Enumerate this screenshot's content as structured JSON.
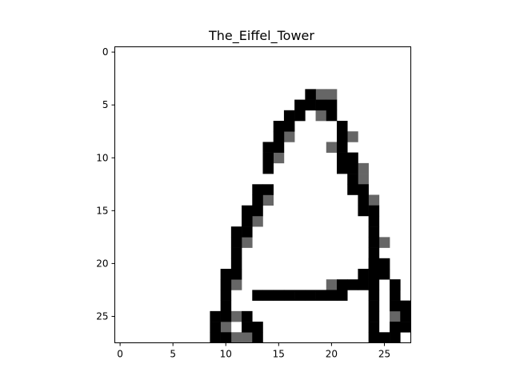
{
  "chart_data": {
    "type": "heatmap",
    "title": "The_Eiffel_Tower",
    "colormap": "gray_r",
    "grid": false,
    "xlim": [
      -0.5,
      27.5
    ],
    "ylim": [
      27.5,
      -0.5
    ],
    "x_ticks": [
      0,
      5,
      10,
      15,
      20,
      25
    ],
    "y_ticks": [
      0,
      5,
      10,
      15,
      20,
      25
    ],
    "x_tick_labels": [
      "0",
      "5",
      "10",
      "15",
      "20",
      "25"
    ],
    "y_tick_labels": [
      "0",
      "5",
      "10",
      "15",
      "20",
      "25"
    ],
    "size": [
      28,
      28
    ],
    "levels": {
      "dark": 1.0,
      "mid": 0.6
    },
    "pixels": {
      "dark": [
        [
          4,
          18
        ],
        [
          5,
          17
        ],
        [
          5,
          18
        ],
        [
          5,
          19
        ],
        [
          5,
          20
        ],
        [
          6,
          16
        ],
        [
          6,
          17
        ],
        [
          6,
          20
        ],
        [
          7,
          15
        ],
        [
          7,
          16
        ],
        [
          7,
          21
        ],
        [
          8,
          15
        ],
        [
          8,
          21
        ],
        [
          9,
          14
        ],
        [
          9,
          15
        ],
        [
          9,
          21
        ],
        [
          10,
          14
        ],
        [
          10,
          21
        ],
        [
          10,
          22
        ],
        [
          11,
          14
        ],
        [
          11,
          21
        ],
        [
          11,
          22
        ],
        [
          12,
          22
        ],
        [
          13,
          13
        ],
        [
          13,
          14
        ],
        [
          13,
          22
        ],
        [
          13,
          23
        ],
        [
          14,
          13
        ],
        [
          14,
          23
        ],
        [
          15,
          12
        ],
        [
          15,
          13
        ],
        [
          15,
          23
        ],
        [
          15,
          24
        ],
        [
          16,
          12
        ],
        [
          16,
          24
        ],
        [
          17,
          11
        ],
        [
          17,
          12
        ],
        [
          17,
          24
        ],
        [
          18,
          11
        ],
        [
          18,
          24
        ],
        [
          19,
          11
        ],
        [
          19,
          24
        ],
        [
          20,
          11
        ],
        [
          20,
          24
        ],
        [
          20,
          25
        ],
        [
          21,
          10
        ],
        [
          21,
          11
        ],
        [
          21,
          23
        ],
        [
          21,
          24
        ],
        [
          21,
          25
        ],
        [
          22,
          10
        ],
        [
          22,
          21
        ],
        [
          22,
          22
        ],
        [
          22,
          23
        ],
        [
          22,
          24
        ],
        [
          22,
          26
        ],
        [
          23,
          10
        ],
        [
          23,
          13
        ],
        [
          23,
          14
        ],
        [
          23,
          15
        ],
        [
          23,
          16
        ],
        [
          23,
          17
        ],
        [
          23,
          18
        ],
        [
          23,
          19
        ],
        [
          23,
          20
        ],
        [
          23,
          21
        ],
        [
          23,
          24
        ],
        [
          23,
          26
        ],
        [
          24,
          10
        ],
        [
          24,
          24
        ],
        [
          24,
          26
        ],
        [
          24,
          27
        ],
        [
          25,
          9
        ],
        [
          25,
          10
        ],
        [
          25,
          12
        ],
        [
          25,
          24
        ],
        [
          25,
          27
        ],
        [
          26,
          9
        ],
        [
          26,
          12
        ],
        [
          26,
          13
        ],
        [
          26,
          24
        ],
        [
          26,
          26
        ],
        [
          26,
          27
        ],
        [
          27,
          9
        ],
        [
          27,
          10
        ],
        [
          27,
          13
        ],
        [
          27,
          24
        ],
        [
          27,
          25
        ],
        [
          27,
          26
        ]
      ],
      "mid": [
        [
          4,
          19
        ],
        [
          4,
          20
        ],
        [
          6,
          19
        ],
        [
          7,
          21
        ],
        [
          8,
          16
        ],
        [
          8,
          22
        ],
        [
          9,
          20
        ],
        [
          10,
          15
        ],
        [
          10,
          22
        ],
        [
          11,
          23
        ],
        [
          12,
          23
        ],
        [
          14,
          14
        ],
        [
          14,
          24
        ],
        [
          16,
          13
        ],
        [
          18,
          12
        ],
        [
          18,
          25
        ],
        [
          20,
          24
        ],
        [
          22,
          11
        ],
        [
          22,
          20
        ],
        [
          22,
          26
        ],
        [
          25,
          11
        ],
        [
          25,
          26
        ],
        [
          26,
          10
        ],
        [
          27,
          11
        ],
        [
          27,
          12
        ]
      ]
    }
  }
}
